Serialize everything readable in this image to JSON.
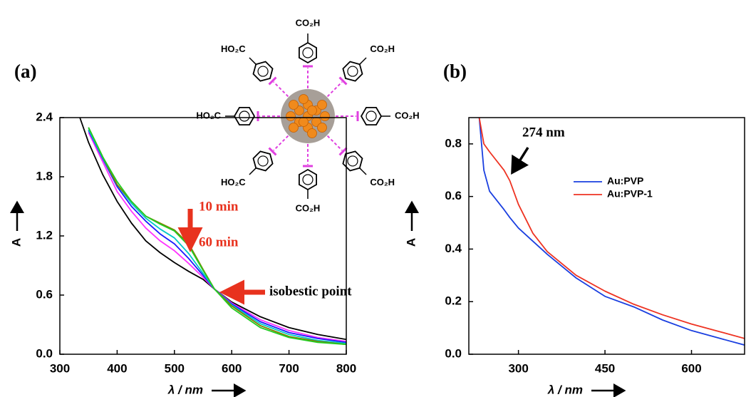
{
  "chart_data": [
    {
      "type": "line",
      "panel_label": "(a)",
      "x_label": "λ / nm",
      "y_label": "A",
      "x": [
        335,
        350,
        375,
        400,
        425,
        450,
        475,
        500,
        525,
        550,
        570,
        600,
        650,
        700,
        750,
        800
      ],
      "series": [
        {
          "color": "#000000",
          "values": [
            2.4,
            2.15,
            1.82,
            1.55,
            1.33,
            1.15,
            1.03,
            0.93,
            0.84,
            0.76,
            0.66,
            0.53,
            0.38,
            0.27,
            0.2,
            0.15
          ]
        },
        {
          "color": "#ff33ff",
          "values": [
            null,
            2.25,
            1.95,
            1.65,
            1.45,
            1.28,
            1.15,
            1.05,
            0.92,
            0.78,
            0.66,
            0.52,
            0.35,
            0.24,
            0.17,
            0.13
          ]
        },
        {
          "color": "#1a1aff",
          "values": [
            null,
            2.27,
            1.98,
            1.7,
            1.5,
            1.35,
            1.22,
            1.12,
            0.97,
            0.8,
            0.66,
            0.51,
            0.33,
            0.22,
            0.16,
            0.12
          ]
        },
        {
          "color": "#00c8c8",
          "values": [
            null,
            2.28,
            1.99,
            1.72,
            1.53,
            1.38,
            1.27,
            1.18,
            1.02,
            0.82,
            0.66,
            0.5,
            0.31,
            0.2,
            0.14,
            0.11
          ]
        },
        {
          "color": "#808000",
          "values": [
            null,
            2.3,
            2.0,
            1.72,
            1.55,
            1.4,
            1.33,
            1.26,
            1.12,
            0.86,
            0.66,
            0.49,
            0.29,
            0.18,
            0.13,
            0.1
          ]
        },
        {
          "color": "#22cc22",
          "values": [
            null,
            2.3,
            2.0,
            1.75,
            1.55,
            1.4,
            1.32,
            1.25,
            1.1,
            0.85,
            0.66,
            0.47,
            0.27,
            0.17,
            0.12,
            0.1
          ]
        }
      ],
      "xlim": [
        300,
        800
      ],
      "xticks": [
        300,
        400,
        500,
        600,
        700,
        800
      ],
      "ylim": [
        0,
        2.4
      ],
      "yticks": [
        {
          "value": 0,
          "label": "0.0"
        },
        0.6,
        1.2,
        1.8,
        2.4
      ],
      "annotations": [
        {
          "text": "10 min",
          "color": "#e8321e"
        },
        {
          "text": "60 min",
          "color": "#e8321e"
        },
        {
          "text": "isobestic point",
          "color": "#000000"
        }
      ]
    },
    {
      "type": "line",
      "panel_label": "(b)",
      "x_label": "λ / nm",
      "y_label": "A",
      "x": [
        232,
        240,
        250,
        275,
        285,
        300,
        325,
        350,
        400,
        450,
        500,
        550,
        600,
        650,
        692
      ],
      "series": [
        {
          "name": "Au:PVP",
          "color": "#1a3fe0",
          "values": [
            0.9,
            0.7,
            0.62,
            0.55,
            0.52,
            0.48,
            0.43,
            0.38,
            0.29,
            0.22,
            0.18,
            0.13,
            0.09,
            0.06,
            0.035
          ]
        },
        {
          "name": "Au:PVP-1",
          "color": "#ee3322",
          "values": [
            0.9,
            0.8,
            0.77,
            0.7,
            0.66,
            0.57,
            0.46,
            0.39,
            0.3,
            0.24,
            0.19,
            0.15,
            0.115,
            0.085,
            0.06
          ]
        }
      ],
      "xlim": [
        214,
        692
      ],
      "xticks": [
        300,
        450,
        600
      ],
      "ylim": [
        0,
        0.9
      ],
      "yticks": [
        {
          "value": 0,
          "label": "0.0"
        },
        0.2,
        0.4,
        0.6,
        0.8
      ],
      "legend": "center right",
      "annotations": [
        {
          "text": "274 nm",
          "color": "#000000"
        }
      ]
    }
  ],
  "diagram": {
    "labels": [
      "CO₂H",
      "CO₂H",
      "CO₂H",
      "CO₂H",
      "CO₂H",
      "HO₂C",
      "HO₂C",
      "HO₂C"
    ]
  }
}
